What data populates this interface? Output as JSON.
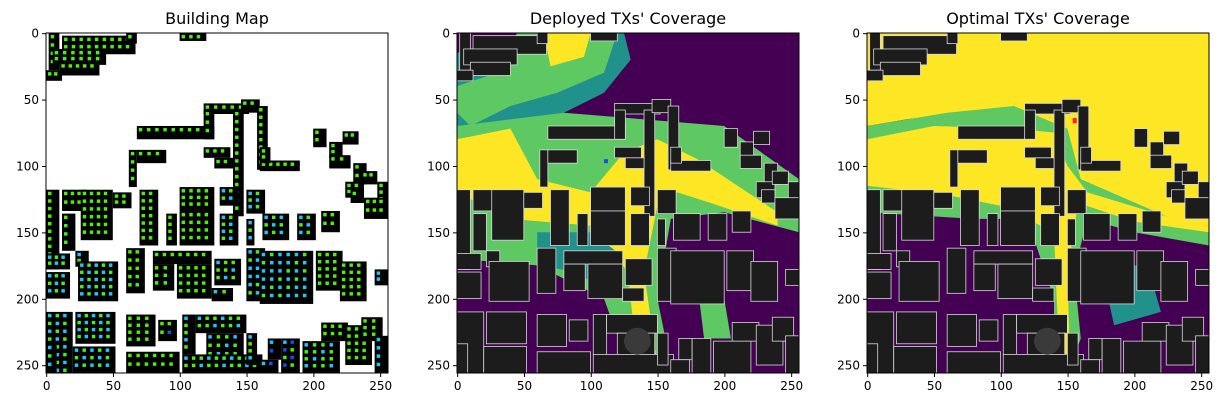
{
  "figure": {
    "background": "#ffffff"
  },
  "panels": [
    {
      "title": "Building Map",
      "image_kind": "building-map",
      "x_ticks": [
        "0",
        "50",
        "100",
        "150",
        "200",
        "250"
      ],
      "y_ticks": [
        "0",
        "50",
        "100",
        "150",
        "200",
        "250"
      ]
    },
    {
      "title": "Deployed TXs' Coverage",
      "image_kind": "coverage-deployed",
      "x_ticks": [
        "0",
        "50",
        "100",
        "150",
        "200",
        "250"
      ],
      "y_ticks": [
        "0",
        "50",
        "100",
        "150",
        "200",
        "250"
      ]
    },
    {
      "title": "Optimal TXs' Coverage",
      "image_kind": "coverage-optimal",
      "x_ticks": [
        "0",
        "50",
        "100",
        "150",
        "200",
        "250"
      ],
      "y_ticks": [
        "0",
        "50",
        "100",
        "150",
        "200",
        "250"
      ]
    }
  ],
  "chart_data": [
    {
      "type": "heatmap",
      "title": "Building Map",
      "xlim": [
        0,
        256
      ],
      "ylim": [
        256,
        0
      ],
      "xticks": [
        0,
        50,
        100,
        150,
        200,
        250
      ],
      "yticks": [
        0,
        50,
        100,
        150,
        200,
        250
      ],
      "grid": false,
      "colors": [
        "#ffffff",
        "#000000",
        "#4cee0a",
        "#1ec8f5",
        "#1a4fe0"
      ]
    },
    {
      "type": "heatmap",
      "title": "Deployed TXs' Coverage",
      "xlim": [
        0,
        256
      ],
      "ylim": [
        256,
        0
      ],
      "xticks": [
        0,
        50,
        100,
        150,
        200,
        250
      ],
      "yticks": [
        0,
        50,
        100,
        150,
        200,
        250
      ],
      "grid": false,
      "colors": [
        "#440154",
        "#21918c",
        "#5ec962",
        "#fde725"
      ]
    },
    {
      "type": "heatmap",
      "title": "Optimal TXs' Coverage",
      "xlim": [
        0,
        256
      ],
      "ylim": [
        256,
        0
      ],
      "xticks": [
        0,
        50,
        100,
        150,
        200,
        250
      ],
      "yticks": [
        0,
        50,
        100,
        150,
        200,
        250
      ],
      "grid": false,
      "colors": [
        "#440154",
        "#21918c",
        "#5ec962",
        "#fde725"
      ]
    }
  ]
}
